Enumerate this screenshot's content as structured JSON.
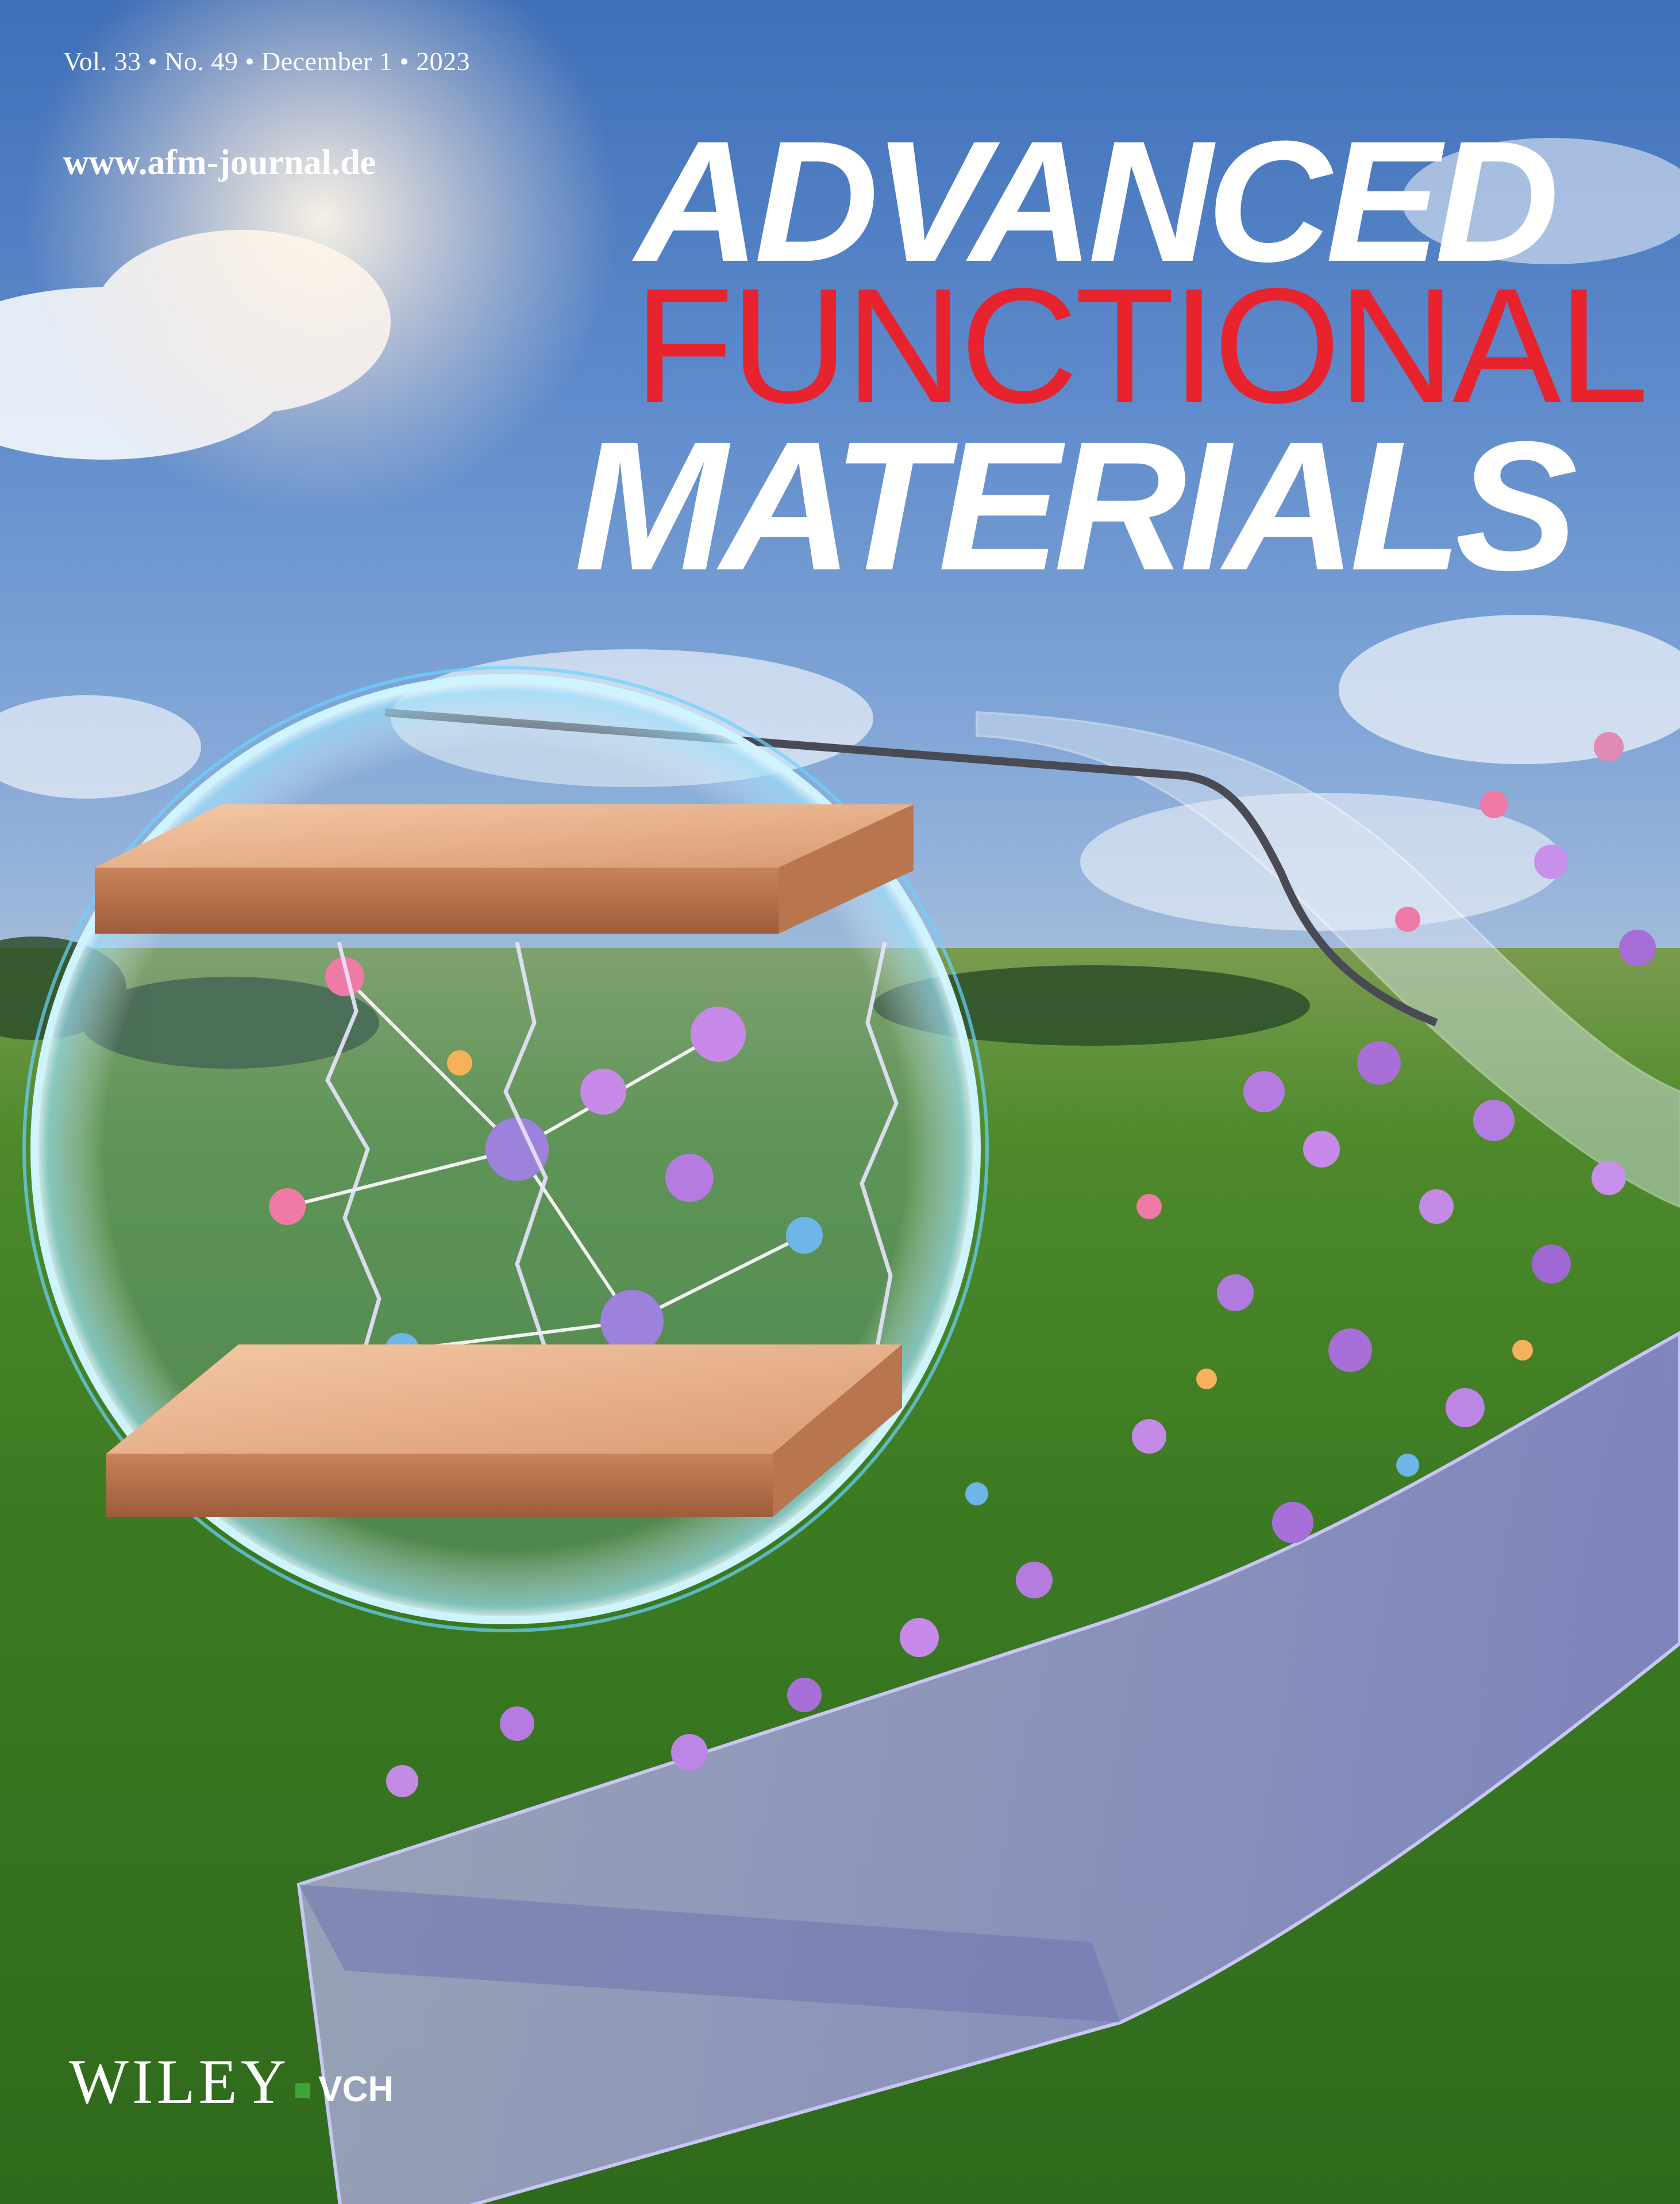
{
  "issue_line": "Vol. 33 • No. 49 • December 1 • 2023",
  "website": "www.afm-journal.de",
  "masthead": {
    "line1": "ADVANCED",
    "line2": "FUNCTIONAL",
    "line3": "MATERIALS"
  },
  "colors": {
    "masthead_white": "#ffffff",
    "masthead_red": "#e8232e",
    "publisher_green": "#3fa535"
  },
  "publisher": {
    "name": "WILEY",
    "sub": "VCH"
  }
}
